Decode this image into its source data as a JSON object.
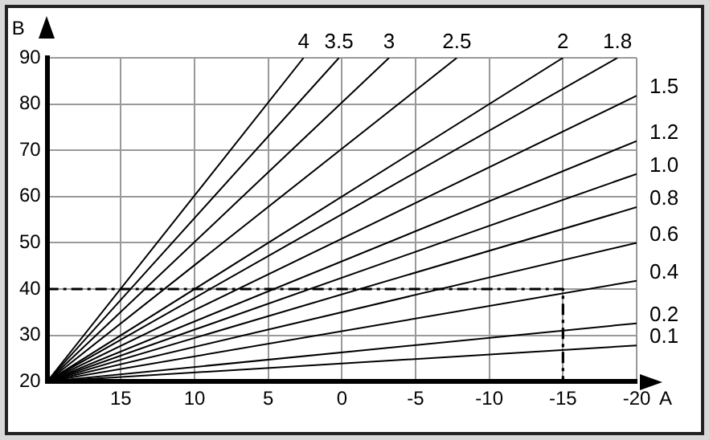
{
  "chart_data": {
    "type": "line",
    "xlabel": "A",
    "ylabel": "B",
    "xlim": [
      20,
      -20
    ],
    "ylim": [
      20,
      90
    ],
    "xticks": [
      15,
      10,
      5,
      0,
      -5,
      -10,
      -15,
      -20
    ],
    "yticks": [
      20,
      30,
      40,
      50,
      60,
      70,
      80,
      90
    ],
    "grid": true,
    "legend": false,
    "marker": "none",
    "series": [
      {
        "name": "4",
        "color": "#000000",
        "x": [
          20,
          2.6
        ],
        "values": [
          20,
          90
        ]
      },
      {
        "name": "3.5",
        "color": "#000000",
        "x": [
          20,
          0.2
        ],
        "values": [
          20,
          90
        ]
      },
      {
        "name": "3",
        "color": "#000000",
        "x": [
          20,
          -3.2
        ],
        "values": [
          20,
          90
        ]
      },
      {
        "name": "2.5",
        "color": "#000000",
        "x": [
          20,
          -7.8
        ],
        "values": [
          20,
          90
        ]
      },
      {
        "name": "2",
        "color": "#000000",
        "x": [
          20,
          -15
        ],
        "values": [
          20,
          90
        ]
      },
      {
        "name": "1.8",
        "color": "#000000",
        "x": [
          20,
          -18.7
        ],
        "values": [
          20,
          90
        ]
      },
      {
        "name": "1.5",
        "color": "#000000",
        "x": [
          20,
          -20
        ],
        "values": [
          20,
          81.8
        ]
      },
      {
        "name": "1.2",
        "color": "#000000",
        "x": [
          20,
          -20
        ],
        "values": [
          20,
          72
        ]
      },
      {
        "name": "1.0",
        "color": "#000000",
        "x": [
          20,
          -20
        ],
        "values": [
          20,
          64.9
        ]
      },
      {
        "name": "0.8",
        "color": "#000000",
        "x": [
          20,
          -20
        ],
        "values": [
          20,
          57.7
        ]
      },
      {
        "name": "0.6",
        "color": "#000000",
        "x": [
          20,
          -20
        ],
        "values": [
          20,
          50
        ]
      },
      {
        "name": "0.4",
        "color": "#000000",
        "x": [
          20,
          -20
        ],
        "values": [
          20,
          41.8
        ]
      },
      {
        "name": "0.2",
        "color": "#000000",
        "x": [
          20,
          -20
        ],
        "values": [
          20,
          32.6
        ]
      },
      {
        "name": "0.1",
        "color": "#000000",
        "x": [
          20,
          -20
        ],
        "values": [
          20,
          27.8
        ]
      },
      {
        "color": "#000000",
        "line_style": "dashed",
        "x": [
          20,
          -15,
          -15
        ],
        "values": [
          40,
          40,
          20
        ]
      }
    ]
  }
}
